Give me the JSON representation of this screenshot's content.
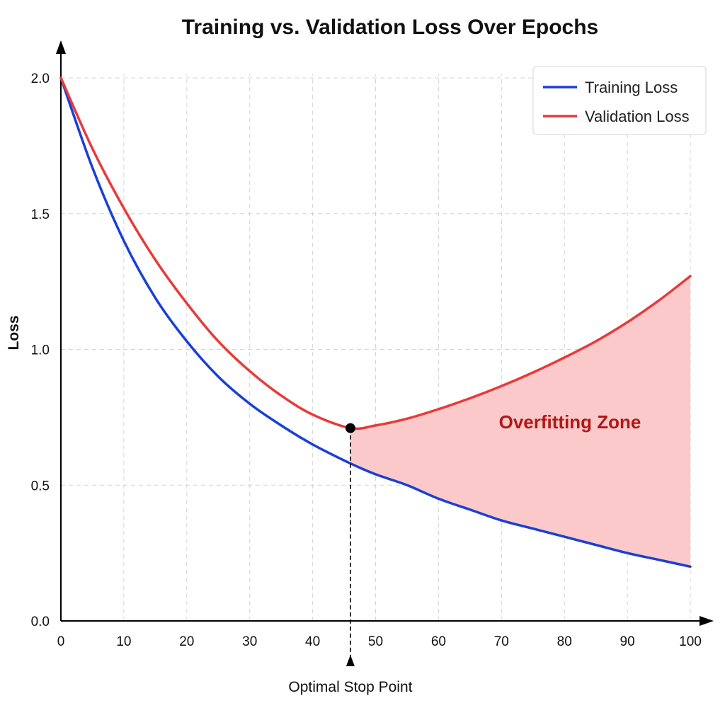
{
  "chart_data": {
    "type": "line",
    "title": "Training vs. Validation Loss Over Epochs",
    "xlabel": "",
    "ylabel": "Loss",
    "xlim": [
      0,
      100
    ],
    "ylim": [
      0,
      2.0
    ],
    "xticks": [
      0,
      10,
      20,
      30,
      40,
      50,
      60,
      70,
      80,
      90,
      100
    ],
    "yticks": [
      0.0,
      0.5,
      1.0,
      1.5,
      2.0
    ],
    "ytick_labels": [
      "0.0",
      "0.5",
      "1.0",
      "1.5",
      "2.0"
    ],
    "grid": true,
    "legend_position": "top-right",
    "series": [
      {
        "name": "Training Loss",
        "color": "#1a3fd6",
        "x": [
          0,
          5,
          10,
          15,
          20,
          25,
          30,
          35,
          40,
          46,
          50,
          55,
          60,
          65,
          70,
          75,
          80,
          85,
          90,
          95,
          100
        ],
        "y": [
          2.0,
          1.67,
          1.4,
          1.19,
          1.03,
          0.9,
          0.8,
          0.72,
          0.65,
          0.58,
          0.54,
          0.5,
          0.45,
          0.41,
          0.37,
          0.34,
          0.31,
          0.28,
          0.25,
          0.225,
          0.2
        ]
      },
      {
        "name": "Validation Loss",
        "color": "#e83a3a",
        "x": [
          0,
          5,
          10,
          15,
          20,
          25,
          30,
          35,
          40,
          46,
          50,
          55,
          60,
          65,
          70,
          75,
          80,
          85,
          90,
          95,
          100
        ],
        "y": [
          2.0,
          1.74,
          1.52,
          1.33,
          1.17,
          1.03,
          0.92,
          0.83,
          0.76,
          0.71,
          0.72,
          0.745,
          0.78,
          0.82,
          0.865,
          0.915,
          0.97,
          1.03,
          1.1,
          1.18,
          1.27
        ]
      }
    ],
    "annotations": {
      "overfitting_label": "Overfitting Zone",
      "overfitting_color": "#b01818",
      "overfitting_fill": "#fbc9c9",
      "overfitting_start_x": 46,
      "stop_point_label": "Optimal Stop Point",
      "stop_point_x": 46,
      "stop_point_y": 0.71
    }
  }
}
